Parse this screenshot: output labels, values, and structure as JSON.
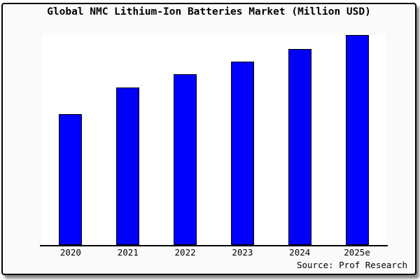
{
  "figure": {
    "background": "#fafafa",
    "border_color": "#000000",
    "outer_background": "#ffffff"
  },
  "title": "Global NMC Lithium-Ion Batteries Market (Million USD)",
  "source": "Source: Prof Research",
  "chart_data": {
    "type": "bar",
    "title": "Global NMC Lithium-Ion Batteries Market (Million USD)",
    "categories": [
      "2020",
      "2021",
      "2022",
      "2023",
      "2024",
      "2025e"
    ],
    "values": [
      62.5,
      75,
      81.3,
      87.5,
      93.5,
      100
    ],
    "value_scale": "relative-percent-of-tallest-bar (no y-axis tick labels shown in figure)",
    "xlabel": "",
    "ylabel": "",
    "ylim": [
      0,
      100
    ],
    "grid": false,
    "legend": false,
    "y_axis_visible": false,
    "bar_color": "#0000ff",
    "bar_border_color": "#000000",
    "axis_color": "#000000",
    "plot_background": "#ffffff",
    "source_note": "Source: Prof Research"
  }
}
